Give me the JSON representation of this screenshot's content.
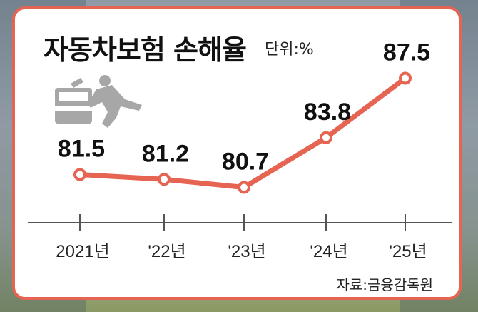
{
  "title": "자동차보험 손해율",
  "unit_label": "단위:%",
  "source": "자료:금융감독원",
  "icons": {
    "illustration": "car-crash-pedestrian-icon"
  },
  "colors": {
    "line": "#e56552",
    "frame": "#e56552",
    "marker_fill": "#ffffff"
  },
  "chart_data": {
    "type": "line",
    "categories": [
      "2021년",
      "'22년",
      "'23년",
      "'24년",
      "'25년"
    ],
    "values": [
      81.5,
      81.2,
      80.7,
      83.8,
      87.5
    ],
    "data_labels": [
      "81.5",
      "81.2",
      "80.7",
      "83.8",
      "87.5"
    ],
    "title": "자동차보험 손해율",
    "unit": "단위:%",
    "ylim": [
      80.1,
      88.1
    ],
    "grid": false
  }
}
